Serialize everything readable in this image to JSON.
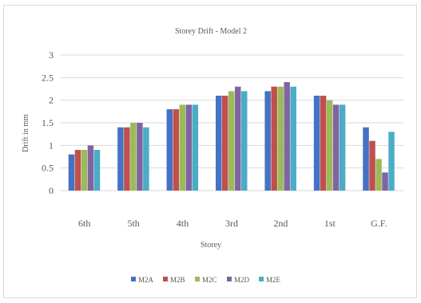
{
  "chart_data": {
    "type": "bar",
    "title": "Storey Drift - Model 2",
    "xlabel": "Storey",
    "ylabel": "Drift in mm",
    "ylim": [
      0,
      3
    ],
    "yticks": [
      "0",
      "0.5",
      "1",
      "1.5",
      "2",
      "2.5",
      "3"
    ],
    "categories": [
      "6th",
      "5th",
      "4th",
      "3rd",
      "2nd",
      "1st",
      "G.F."
    ],
    "grid": true,
    "legend_position": "bottom",
    "series": [
      {
        "name": "M2A",
        "color": "#4472c4",
        "values": [
          0.8,
          1.4,
          1.8,
          2.1,
          2.2,
          2.1,
          1.4
        ]
      },
      {
        "name": "M2B",
        "color": "#c0504d",
        "values": [
          0.9,
          1.4,
          1.8,
          2.1,
          2.3,
          2.1,
          1.1
        ]
      },
      {
        "name": "M2C",
        "color": "#9bbb59",
        "values": [
          0.9,
          1.5,
          1.9,
          2.2,
          2.3,
          2.0,
          0.7
        ]
      },
      {
        "name": "M2D",
        "color": "#8064a2",
        "values": [
          1.0,
          1.5,
          1.9,
          2.3,
          2.4,
          1.9,
          0.4
        ]
      },
      {
        "name": "M2E",
        "color": "#4bacc6",
        "values": [
          0.9,
          1.4,
          1.9,
          2.2,
          2.3,
          1.9,
          1.3
        ]
      }
    ]
  }
}
